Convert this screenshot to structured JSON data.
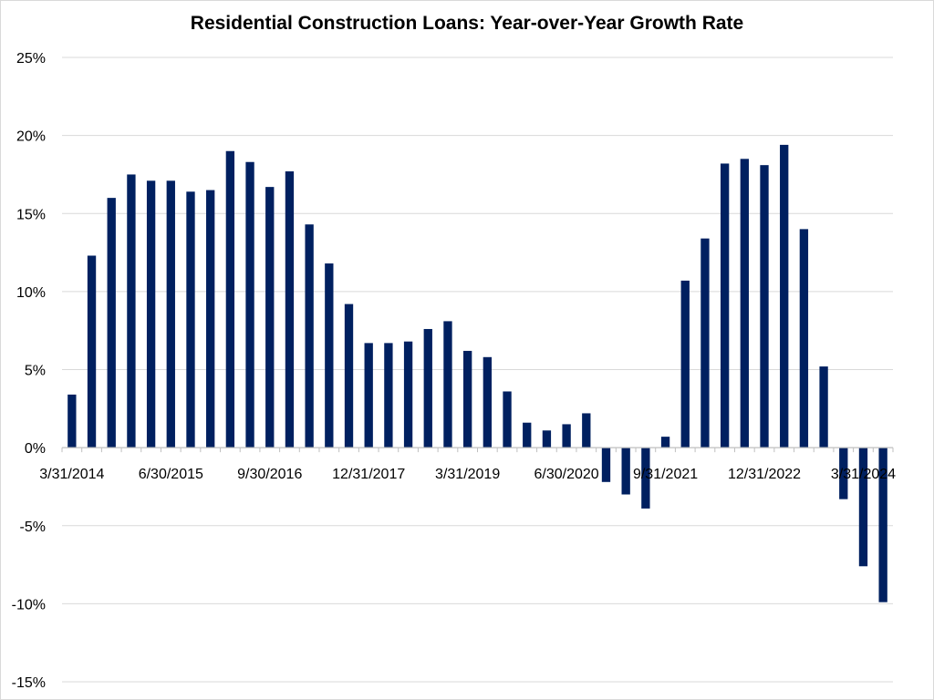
{
  "chart_data": {
    "type": "bar",
    "title": "Residential Construction Loans: Year-over-Year Growth Rate",
    "xlabel": "",
    "ylabel": "",
    "ylim": [
      -15,
      25
    ],
    "yticks": [
      25,
      20,
      15,
      10,
      5,
      0,
      -5,
      -10,
      -15
    ],
    "ytick_labels": [
      "25%",
      "20%",
      "15%",
      "10%",
      "5%",
      "0%",
      "-5%",
      "-10%",
      "-15%"
    ],
    "x_tick_labels": [
      "3/31/2014",
      "6/30/2015",
      "9/30/2016",
      "12/31/2017",
      "3/31/2019",
      "6/30/2020",
      "9/31/2021",
      "12/31/2022",
      "3/31/2024"
    ],
    "x_tick_every": 5,
    "grid": true,
    "bar_color": "#002060",
    "values": [
      3.4,
      12.3,
      16.0,
      17.5,
      17.1,
      17.1,
      16.4,
      16.5,
      19.0,
      18.3,
      16.7,
      17.7,
      14.3,
      11.8,
      9.2,
      6.7,
      6.7,
      6.8,
      7.6,
      8.1,
      6.2,
      5.8,
      3.6,
      1.6,
      1.1,
      1.5,
      2.2,
      -2.2,
      -3.0,
      -3.9,
      0.7,
      10.7,
      13.4,
      18.2,
      18.5,
      18.1,
      19.4,
      14.0,
      5.2,
      -3.3,
      -7.6,
      -9.9
    ]
  }
}
